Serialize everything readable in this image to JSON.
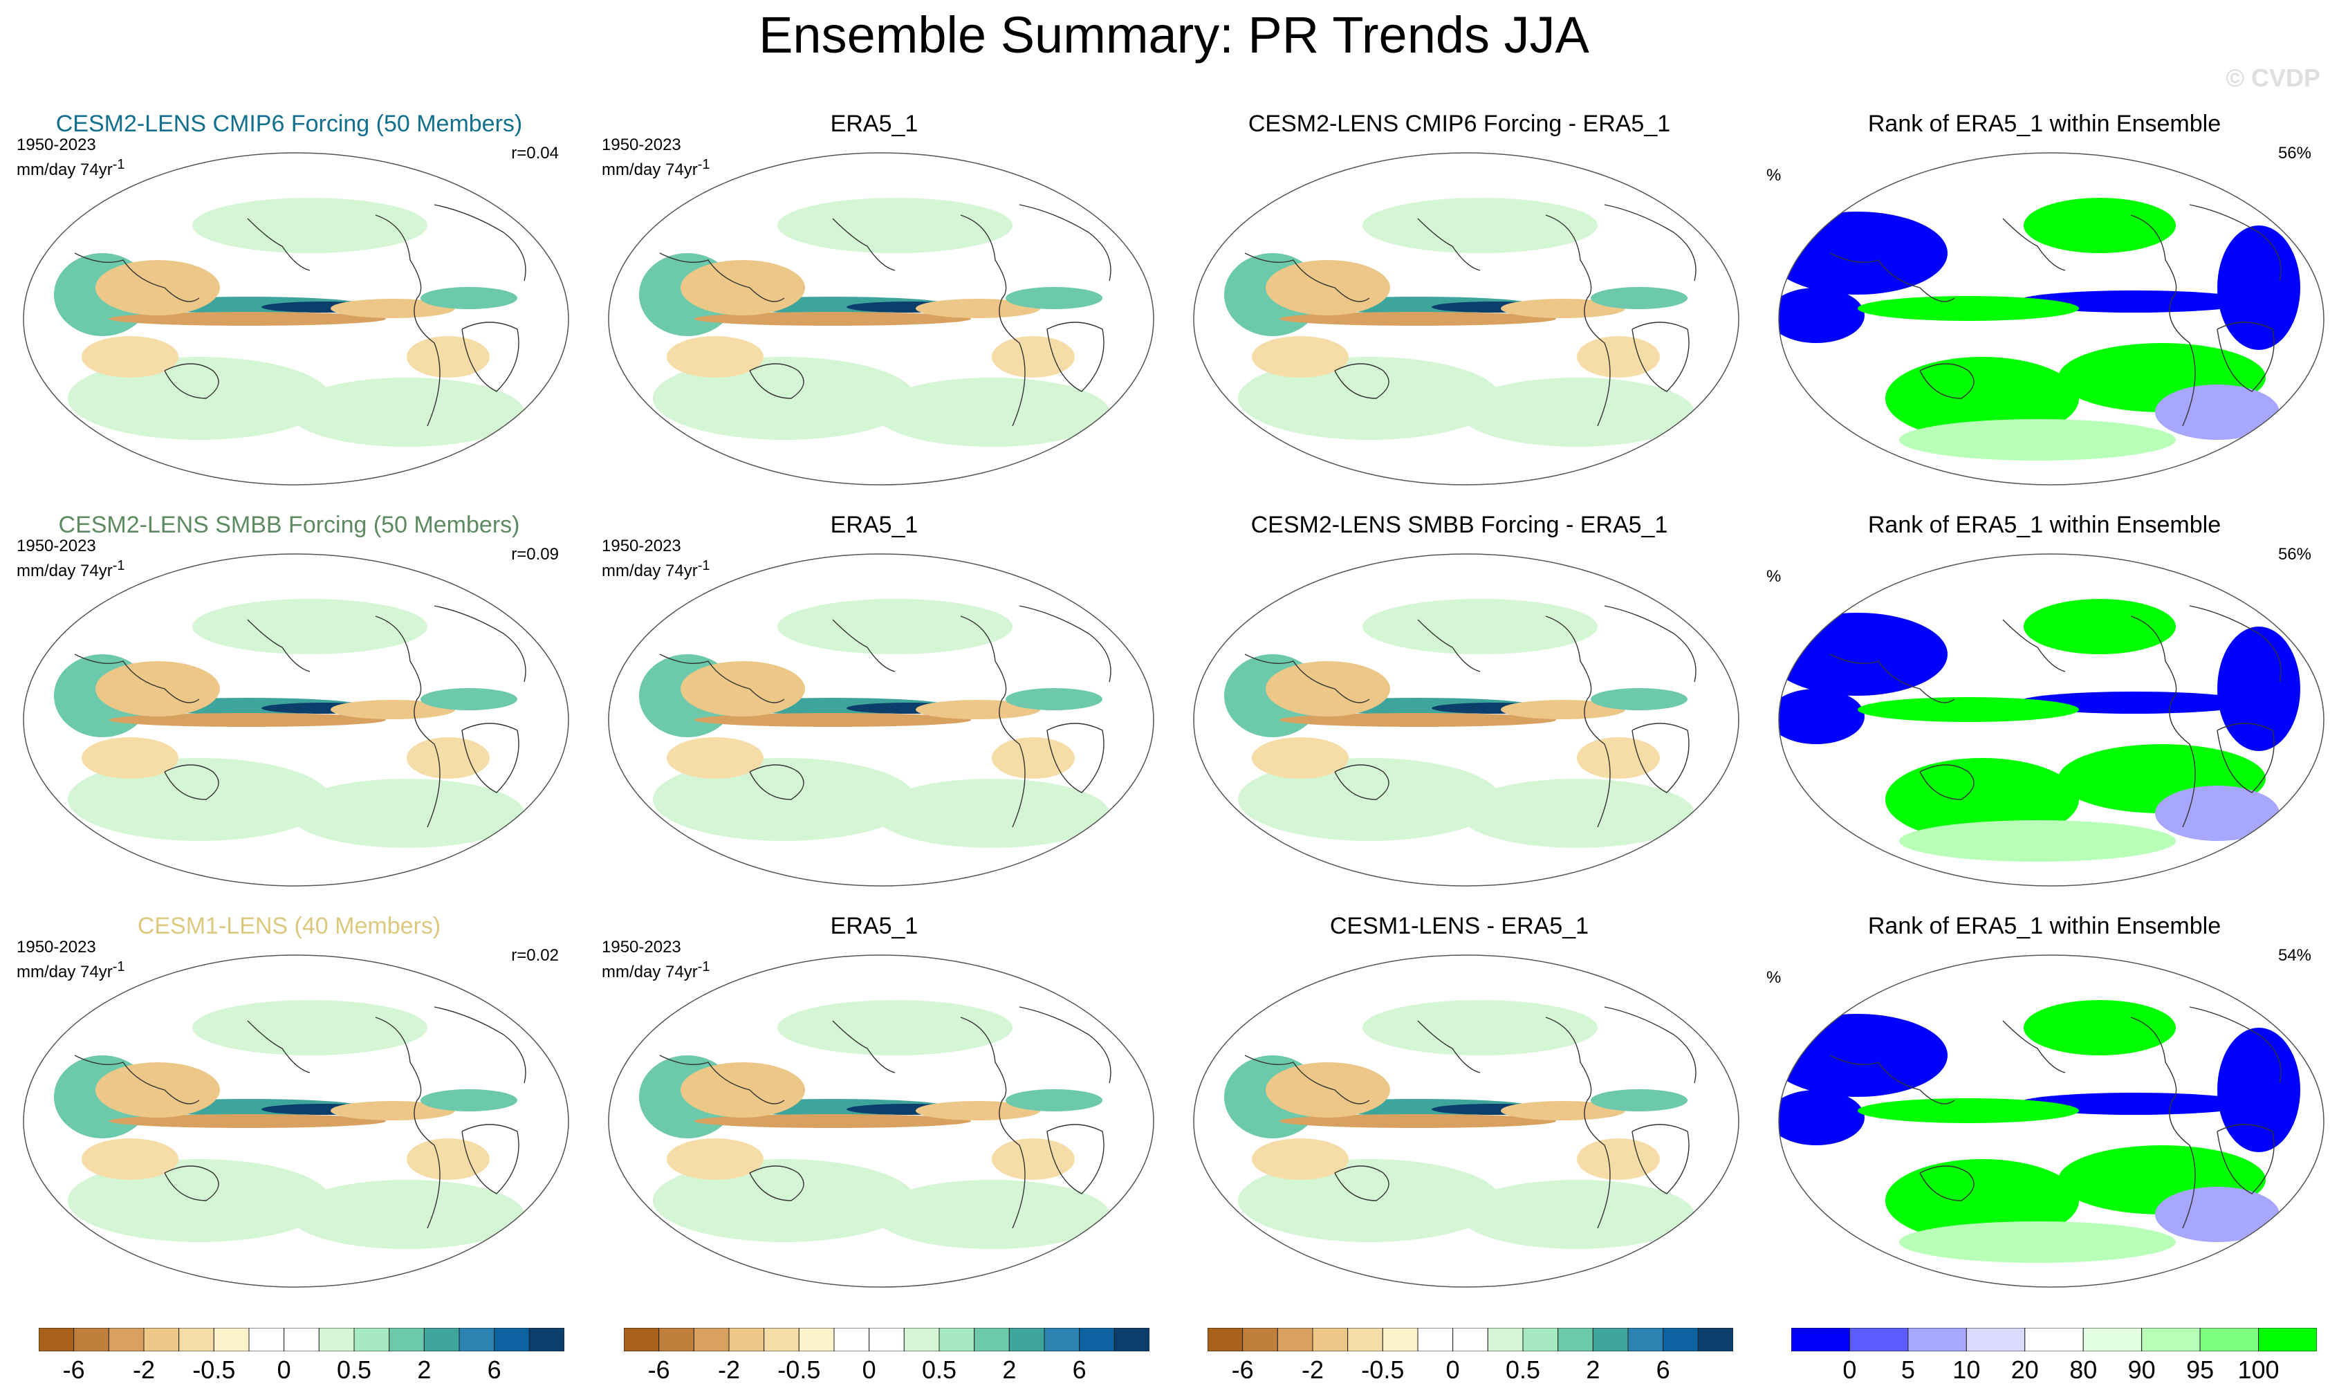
{
  "figure": {
    "title": "Ensemble Summary: PR Trends JJA",
    "logo": "© CVDP",
    "period": "1950-2023",
    "units_prefix": "mm/day 74yr",
    "units_exp": "-1"
  },
  "colors": {
    "diverging": [
      "#a7611b",
      "#c17f3d",
      "#d8a160",
      "#edc787",
      "#f6dda7",
      "#fcf3cb",
      "#ffffff",
      "#ffffff",
      "#d5f6d5",
      "#a7e9c0",
      "#6dc9ab",
      "#3ea59c",
      "#2b83b2",
      "#0d62a1",
      "#0b3e6a"
    ],
    "rank": [
      "#0000ff",
      "#5b5bff",
      "#a7a7ff",
      "#dadaff",
      "#ffffff",
      "#e2ffe2",
      "#b8ffb8",
      "#7dff7d",
      "#00ff00"
    ]
  },
  "colorbars": [
    {
      "type": "diverging",
      "labels": [
        "-6",
        "-2",
        "-0.5",
        "0",
        "0.5",
        "2",
        "6"
      ]
    },
    {
      "type": "diverging",
      "labels": [
        "-6",
        "-2",
        "-0.5",
        "0",
        "0.5",
        "2",
        "6"
      ]
    },
    {
      "type": "diverging",
      "labels": [
        "-6",
        "-2",
        "-0.5",
        "0",
        "0.5",
        "2",
        "6"
      ]
    },
    {
      "type": "rank",
      "labels": [
        "0",
        "5",
        "10",
        "20",
        "80",
        "90",
        "95",
        "100"
      ]
    }
  ],
  "rows": [
    {
      "ensemble": {
        "title": "CESM2-LENS CMIP6 Forcing (50 Members)",
        "color": "#136f8e",
        "r": "r=0.04"
      },
      "obs": {
        "title": "ERA5_1"
      },
      "diff": {
        "title": "CESM2-LENS CMIP6 Forcing - ERA5_1"
      },
      "rank": {
        "title": "Rank of ERA5_1 within Ensemble",
        "unit": "%",
        "value": "56%"
      }
    },
    {
      "ensemble": {
        "title": "CESM2-LENS SMBB Forcing (50 Members)",
        "color": "#5e8a62",
        "r": "r=0.09"
      },
      "obs": {
        "title": "ERA5_1"
      },
      "diff": {
        "title": "CESM2-LENS SMBB Forcing - ERA5_1"
      },
      "rank": {
        "title": "Rank of ERA5_1 within Ensemble",
        "unit": "%",
        "value": "56%"
      }
    },
    {
      "ensemble": {
        "title": "CESM1-LENS (40 Members)",
        "color": "#ddc87f",
        "r": "r=0.02"
      },
      "obs": {
        "title": "ERA5_1"
      },
      "diff": {
        "title": "CESM1-LENS - ERA5_1"
      },
      "rank": {
        "title": "Rank of ERA5_1 within Ensemble",
        "unit": "%",
        "value": "54%"
      }
    }
  ],
  "chart_data": [
    {
      "type": "heatmap",
      "panel": "row1-ensemble",
      "title": "CESM2-LENS CMIP6 Forcing (50 Members)",
      "pattern_correlation": 0.04,
      "period": "1950-2023",
      "units": "mm/day 74yr-1"
    },
    {
      "type": "heatmap",
      "panel": "row1-obs",
      "title": "ERA5_1",
      "period": "1950-2023",
      "units": "mm/day 74yr-1"
    },
    {
      "type": "heatmap",
      "panel": "row1-diff",
      "title": "CESM2-LENS CMIP6 Forcing - ERA5_1"
    },
    {
      "type": "heatmap",
      "panel": "row1-rank",
      "title": "Rank of ERA5_1 within Ensemble",
      "units": "%",
      "summary_percent": 56
    },
    {
      "type": "heatmap",
      "panel": "row2-ensemble",
      "title": "CESM2-LENS SMBB Forcing (50 Members)",
      "pattern_correlation": 0.09,
      "period": "1950-2023",
      "units": "mm/day 74yr-1"
    },
    {
      "type": "heatmap",
      "panel": "row2-obs",
      "title": "ERA5_1",
      "period": "1950-2023",
      "units": "mm/day 74yr-1"
    },
    {
      "type": "heatmap",
      "panel": "row2-diff",
      "title": "CESM2-LENS SMBB Forcing - ERA5_1"
    },
    {
      "type": "heatmap",
      "panel": "row2-rank",
      "title": "Rank of ERA5_1 within Ensemble",
      "units": "%",
      "summary_percent": 56
    },
    {
      "type": "heatmap",
      "panel": "row3-ensemble",
      "title": "CESM1-LENS (40 Members)",
      "pattern_correlation": 0.02,
      "period": "1950-2023",
      "units": "mm/day 74yr-1"
    },
    {
      "type": "heatmap",
      "panel": "row3-obs",
      "title": "ERA5_1",
      "period": "1950-2023",
      "units": "mm/day 74yr-1"
    },
    {
      "type": "heatmap",
      "panel": "row3-diff",
      "title": "CESM1-LENS - ERA5_1"
    },
    {
      "type": "heatmap",
      "panel": "row3-rank",
      "title": "Rank of ERA5_1 within Ensemble",
      "units": "%",
      "summary_percent": 54
    }
  ]
}
